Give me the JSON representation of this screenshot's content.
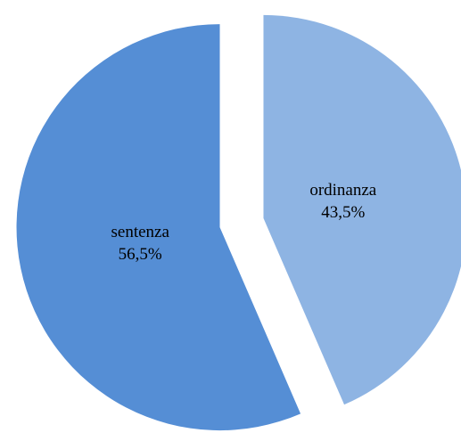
{
  "chart_data": {
    "type": "pie",
    "categories": [
      "ordinanza",
      "sentenza"
    ],
    "values": [
      43.5,
      56.5
    ],
    "value_labels": [
      "43,5%",
      "56,5%"
    ],
    "colors": [
      "#8eb4e3",
      "#558ed5"
    ],
    "start_angle": 0,
    "direction": "clockwise",
    "exploded": true
  }
}
